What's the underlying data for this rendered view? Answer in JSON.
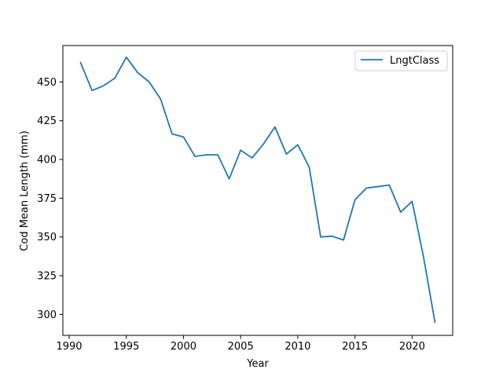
{
  "chart_data": {
    "type": "line",
    "title": "",
    "xlabel": "Year",
    "ylabel": "Cod Mean Length (mm)",
    "xlim": [
      1989.45,
      2023.55
    ],
    "ylim": [
      286.5,
      473.5
    ],
    "xticks": [
      1990,
      1995,
      2000,
      2005,
      2010,
      2015,
      2020
    ],
    "yticks": [
      300,
      325,
      350,
      375,
      400,
      425,
      450
    ],
    "grid": false,
    "legend_position": "top-right",
    "series": [
      {
        "name": "LngtClass",
        "color": "#1f77b4",
        "x": [
          1991,
          1992,
          1993,
          1994,
          1995,
          1996,
          1997,
          1998,
          1999,
          2000,
          2001,
          2002,
          2003,
          2004,
          2005,
          2006,
          2007,
          2008,
          2009,
          2010,
          2011,
          2012,
          2013,
          2014,
          2015,
          2016,
          2017,
          2018,
          2019,
          2020,
          2021,
          2022
        ],
        "y": [
          462.5,
          444.5,
          447.5,
          452.5,
          466,
          456,
          450,
          439,
          416.5,
          414.5,
          402,
          403,
          403,
          387.5,
          406,
          401,
          410,
          421,
          403.5,
          409.5,
          395,
          350,
          350.5,
          348,
          374,
          381.5,
          382.5,
          383.5,
          366,
          373,
          337,
          295
        ]
      }
    ]
  }
}
